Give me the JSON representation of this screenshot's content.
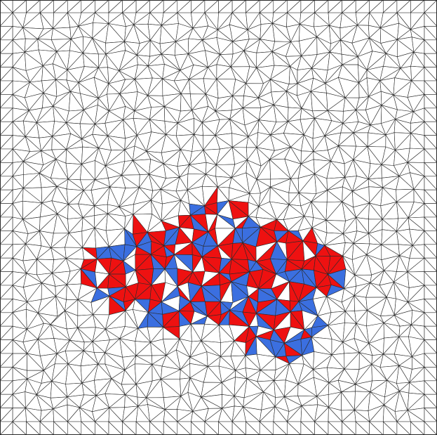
{
  "colors": {
    "background": "#ffffff",
    "mesh_line": "#2a2a2a",
    "region_red": "#ee1111",
    "region_blue": "#3b6fe0"
  },
  "scene": {
    "description_type": "tiling-mesh",
    "regions": [
      "red",
      "blue"
    ]
  }
}
